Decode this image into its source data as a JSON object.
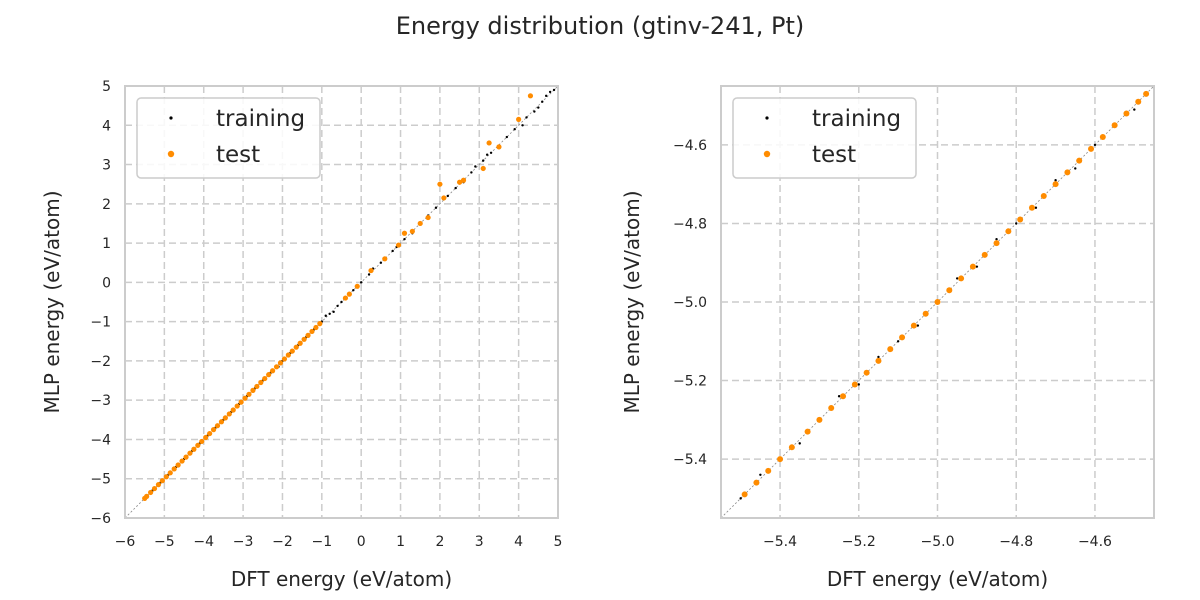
{
  "figure": {
    "title": "Energy distribution (gtinv-241, Pt)"
  },
  "chart_data": [
    {
      "type": "scatter",
      "title": "",
      "xlabel": "DFT energy (eV/atom)",
      "ylabel": "MLP energy (eV/atom)",
      "xlim": [
        -6,
        5
      ],
      "ylim": [
        -6,
        5
      ],
      "xticks": [
        -6,
        -5,
        -4,
        -3,
        -2,
        -1,
        0,
        1,
        2,
        3,
        4,
        5
      ],
      "yticks": [
        -6,
        -5,
        -4,
        -3,
        -2,
        -1,
        0,
        1,
        2,
        3,
        4,
        5
      ],
      "xtick_labels": [
        "−6",
        "−5",
        "−4",
        "−3",
        "−2",
        "−1",
        "0",
        "1",
        "2",
        "3",
        "4",
        "5"
      ],
      "ytick_labels": [
        "−6",
        "−5",
        "−4",
        "−3",
        "−2",
        "−1",
        "0",
        "1",
        "2",
        "3",
        "4",
        "5"
      ],
      "grid": true,
      "legend_position": "top-left",
      "diagonal_reference_line": true,
      "series": [
        {
          "name": "training",
          "color": "#000000",
          "x": [
            -5.5,
            -5.3,
            -5.1,
            -4.9,
            -4.7,
            -4.5,
            -4.3,
            -4.1,
            -3.9,
            -3.7,
            -3.5,
            -3.3,
            -3.1,
            -2.9,
            -2.7,
            -2.5,
            -2.3,
            -2.1,
            -2.0,
            -1.8,
            -1.6,
            -1.4,
            -1.2,
            -1.0,
            -0.9,
            -0.8,
            -0.7,
            -0.6,
            -0.5,
            -0.3,
            -0.2,
            -0.1,
            0.0,
            0.2,
            0.3,
            0.5,
            0.6,
            0.8,
            0.9,
            1.1,
            1.3,
            1.5,
            1.7,
            1.9,
            2.1,
            2.2,
            2.4,
            2.6,
            2.8,
            2.9,
            3.1,
            3.2,
            3.3,
            3.5,
            3.7,
            3.9,
            4.1,
            4.2,
            4.4,
            4.5,
            4.6,
            4.7,
            4.8,
            4.9
          ],
          "y": [
            -5.5,
            -5.3,
            -5.1,
            -4.9,
            -4.7,
            -4.5,
            -4.3,
            -4.1,
            -3.9,
            -3.7,
            -3.5,
            -3.3,
            -3.1,
            -2.9,
            -2.7,
            -2.5,
            -2.3,
            -2.15,
            -2.0,
            -1.8,
            -1.6,
            -1.4,
            -1.2,
            -1.0,
            -0.85,
            -0.8,
            -0.75,
            -0.6,
            -0.5,
            -0.3,
            -0.2,
            -0.1,
            0.0,
            0.2,
            0.35,
            0.5,
            0.6,
            0.8,
            0.9,
            1.1,
            1.25,
            1.5,
            1.7,
            1.9,
            2.15,
            2.2,
            2.4,
            2.55,
            2.8,
            2.95,
            3.1,
            3.25,
            3.3,
            3.45,
            3.7,
            3.9,
            4.0,
            4.2,
            4.35,
            4.45,
            4.6,
            4.75,
            4.85,
            4.9
          ]
        },
        {
          "name": "test",
          "color": "#ff8c00",
          "x": [
            -5.5,
            -5.45,
            -5.35,
            -5.25,
            -5.15,
            -5.05,
            -4.95,
            -4.85,
            -4.75,
            -4.65,
            -4.55,
            -4.45,
            -4.35,
            -4.25,
            -4.15,
            -4.05,
            -3.95,
            -3.85,
            -3.75,
            -3.65,
            -3.55,
            -3.45,
            -3.35,
            -3.25,
            -3.15,
            -3.05,
            -2.95,
            -2.85,
            -2.75,
            -2.65,
            -2.55,
            -2.45,
            -2.35,
            -2.25,
            -2.15,
            -2.05,
            -1.95,
            -1.85,
            -1.75,
            -1.65,
            -1.55,
            -1.45,
            -1.35,
            -1.25,
            -1.15,
            -1.05,
            -0.4,
            -0.3,
            -0.1,
            0.25,
            0.6,
            0.95,
            1.1,
            1.3,
            1.5,
            1.7,
            2.0,
            2.1,
            2.5,
            2.6,
            3.1,
            3.25,
            3.5,
            4.0,
            4.3
          ],
          "y": [
            -5.5,
            -5.45,
            -5.35,
            -5.25,
            -5.15,
            -5.05,
            -4.95,
            -4.85,
            -4.75,
            -4.65,
            -4.55,
            -4.45,
            -4.35,
            -4.25,
            -4.15,
            -4.05,
            -3.95,
            -3.85,
            -3.75,
            -3.65,
            -3.55,
            -3.45,
            -3.35,
            -3.25,
            -3.15,
            -3.05,
            -2.95,
            -2.85,
            -2.75,
            -2.65,
            -2.55,
            -2.45,
            -2.35,
            -2.25,
            -2.15,
            -2.05,
            -1.95,
            -1.85,
            -1.75,
            -1.65,
            -1.55,
            -1.45,
            -1.35,
            -1.25,
            -1.15,
            -1.05,
            -0.4,
            -0.3,
            -0.1,
            0.3,
            0.6,
            0.95,
            1.25,
            1.3,
            1.5,
            1.65,
            2.5,
            2.15,
            2.55,
            2.6,
            2.9,
            3.55,
            3.45,
            4.15,
            4.75
          ]
        }
      ]
    },
    {
      "type": "scatter",
      "title": "",
      "xlabel": "DFT energy (eV/atom)",
      "ylabel": "MLP energy (eV/atom)",
      "xlim": [
        -5.55,
        -4.45
      ],
      "ylim": [
        -5.55,
        -4.45
      ],
      "xticks": [
        -5.4,
        -5.2,
        -5.0,
        -4.8,
        -4.6
      ],
      "yticks": [
        -5.4,
        -5.2,
        -5.0,
        -4.8,
        -4.6
      ],
      "xtick_labels": [
        "−5.4",
        "−5.2",
        "−5.0",
        "−4.8",
        "−4.6"
      ],
      "ytick_labels": [
        "−5.4",
        "−5.2",
        "−5.0",
        "−4.8",
        "−4.6"
      ],
      "grid": true,
      "legend_position": "top-left",
      "diagonal_reference_line": true,
      "series": [
        {
          "name": "training",
          "color": "#000000",
          "x": [
            -5.5,
            -5.45,
            -5.4,
            -5.35,
            -5.3,
            -5.25,
            -5.2,
            -5.15,
            -5.1,
            -5.05,
            -5.0,
            -4.95,
            -4.9,
            -4.85,
            -4.8,
            -4.75,
            -4.7,
            -4.65,
            -4.6,
            -4.55,
            -4.5,
            -4.47
          ],
          "y": [
            -5.5,
            -5.44,
            -5.4,
            -5.36,
            -5.3,
            -5.24,
            -5.21,
            -5.14,
            -5.1,
            -5.06,
            -5.0,
            -4.94,
            -4.91,
            -4.84,
            -4.8,
            -4.76,
            -4.69,
            -4.66,
            -4.6,
            -4.55,
            -4.51,
            -4.47
          ]
        },
        {
          "name": "test",
          "color": "#ff8c00",
          "x": [
            -5.49,
            -5.46,
            -5.43,
            -5.4,
            -5.37,
            -5.33,
            -5.3,
            -5.27,
            -5.24,
            -5.21,
            -5.18,
            -5.15,
            -5.12,
            -5.09,
            -5.06,
            -5.03,
            -5.0,
            -4.97,
            -4.94,
            -4.91,
            -4.88,
            -4.85,
            -4.82,
            -4.79,
            -4.76,
            -4.73,
            -4.7,
            -4.67,
            -4.64,
            -4.61,
            -4.58,
            -4.55,
            -4.52,
            -4.49,
            -4.47
          ],
          "y": [
            -5.49,
            -5.46,
            -5.43,
            -5.4,
            -5.37,
            -5.33,
            -5.3,
            -5.27,
            -5.24,
            -5.21,
            -5.18,
            -5.15,
            -5.12,
            -5.09,
            -5.06,
            -5.03,
            -5.0,
            -4.97,
            -4.94,
            -4.91,
            -4.88,
            -4.85,
            -4.82,
            -4.79,
            -4.76,
            -4.73,
            -4.7,
            -4.67,
            -4.64,
            -4.61,
            -4.58,
            -4.55,
            -4.52,
            -4.49,
            -4.47
          ]
        }
      ]
    }
  ]
}
